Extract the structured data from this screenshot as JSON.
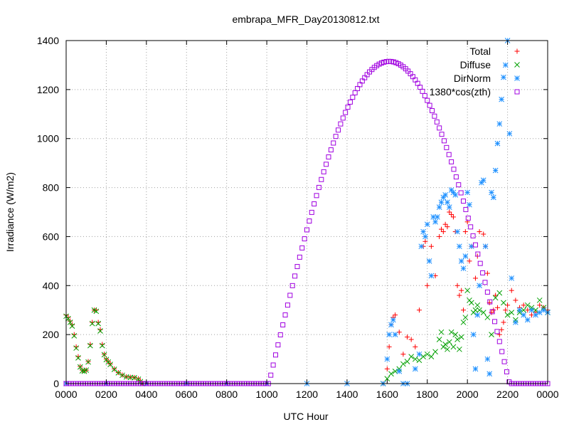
{
  "chart_data": {
    "type": "scatter",
    "title": "embrapa_MFR_Day20130812.txt",
    "xlabel": "UTC Hour",
    "ylabel": "Irradiance (W/m2)",
    "xlim": [
      0,
      24
    ],
    "ylim": [
      0,
      1400
    ],
    "grid": true,
    "legend_position": "top-right",
    "x_tick_labels": [
      "0000",
      "0200",
      "0400",
      "0600",
      "0800",
      "1000",
      "1200",
      "1400",
      "1600",
      "1800",
      "2000",
      "2200",
      "0000"
    ],
    "x_tick_values": [
      0,
      2,
      4,
      6,
      8,
      10,
      12,
      14,
      16,
      18,
      20,
      22,
      24
    ],
    "y_ticks": [
      0,
      200,
      400,
      600,
      800,
      1000,
      1200,
      1400
    ],
    "series": [
      {
        "name": "Total",
        "color": "#ff0000",
        "marker": "+",
        "points": [
          [
            0,
            280
          ],
          [
            0.1,
            270
          ],
          [
            0.2,
            255
          ],
          [
            0.3,
            240
          ],
          [
            0.4,
            200
          ],
          [
            0.5,
            150
          ],
          [
            0.6,
            110
          ],
          [
            0.7,
            70
          ],
          [
            0.8,
            55
          ],
          [
            0.9,
            52
          ],
          [
            1.0,
            55
          ],
          [
            1.1,
            90
          ],
          [
            1.2,
            160
          ],
          [
            1.3,
            250
          ],
          [
            1.4,
            300
          ],
          [
            1.5,
            300
          ],
          [
            1.6,
            250
          ],
          [
            1.7,
            220
          ],
          [
            1.8,
            160
          ],
          [
            1.9,
            120
          ],
          [
            2.0,
            100
          ],
          [
            2.1,
            90
          ],
          [
            2.2,
            80
          ],
          [
            2.4,
            60
          ],
          [
            2.6,
            45
          ],
          [
            2.8,
            35
          ],
          [
            3.0,
            28
          ],
          [
            3.2,
            26
          ],
          [
            3.4,
            25
          ],
          [
            3.6,
            20
          ],
          [
            3.7,
            10
          ],
          [
            3.8,
            0
          ],
          [
            15.8,
            0
          ],
          [
            16.0,
            60
          ],
          [
            16.1,
            150
          ],
          [
            16.2,
            240
          ],
          [
            16.3,
            270
          ],
          [
            16.4,
            280
          ],
          [
            16.6,
            210
          ],
          [
            16.8,
            120
          ],
          [
            17.0,
            190
          ],
          [
            17.2,
            180
          ],
          [
            17.4,
            150
          ],
          [
            17.6,
            300
          ],
          [
            17.8,
            560
          ],
          [
            17.9,
            580
          ],
          [
            18.0,
            400
          ],
          [
            18.2,
            560
          ],
          [
            18.4,
            440
          ],
          [
            18.6,
            600
          ],
          [
            18.7,
            630
          ],
          [
            18.8,
            620
          ],
          [
            18.9,
            650
          ],
          [
            19.0,
            640
          ],
          [
            19.1,
            700
          ],
          [
            19.2,
            690
          ],
          [
            19.3,
            680
          ],
          [
            19.4,
            620
          ],
          [
            19.5,
            400
          ],
          [
            19.6,
            360
          ],
          [
            19.7,
            380
          ],
          [
            19.8,
            300
          ],
          [
            19.9,
            620
          ],
          [
            20.0,
            660
          ],
          [
            20.1,
            500
          ],
          [
            20.2,
            560
          ],
          [
            20.4,
            430
          ],
          [
            20.5,
            520
          ],
          [
            20.6,
            620
          ],
          [
            20.8,
            610
          ],
          [
            20.9,
            560
          ],
          [
            21.0,
            450
          ],
          [
            21.1,
            330
          ],
          [
            21.2,
            290
          ],
          [
            21.3,
            300
          ],
          [
            21.4,
            360
          ],
          [
            21.5,
            310
          ],
          [
            21.6,
            200
          ],
          [
            21.7,
            220
          ],
          [
            21.8,
            250
          ],
          [
            21.9,
            300
          ],
          [
            22.0,
            320
          ],
          [
            22.2,
            380
          ],
          [
            22.4,
            340
          ],
          [
            22.6,
            310
          ],
          [
            22.8,
            320
          ],
          [
            23.0,
            300
          ],
          [
            23.2,
            280
          ],
          [
            23.4,
            290
          ],
          [
            23.6,
            320
          ],
          [
            23.8,
            310
          ],
          [
            24.0,
            300
          ]
        ]
      },
      {
        "name": "Diffuse",
        "color": "#00a000",
        "marker": "x",
        "points": [
          [
            0,
            275
          ],
          [
            0.1,
            265
          ],
          [
            0.2,
            250
          ],
          [
            0.3,
            235
          ],
          [
            0.4,
            195
          ],
          [
            0.5,
            145
          ],
          [
            0.6,
            105
          ],
          [
            0.7,
            68
          ],
          [
            0.8,
            52
          ],
          [
            0.9,
            50
          ],
          [
            1.0,
            55
          ],
          [
            1.1,
            88
          ],
          [
            1.2,
            155
          ],
          [
            1.3,
            245
          ],
          [
            1.4,
            300
          ],
          [
            1.5,
            295
          ],
          [
            1.6,
            245
          ],
          [
            1.7,
            215
          ],
          [
            1.8,
            155
          ],
          [
            1.9,
            118
          ],
          [
            2.0,
            98
          ],
          [
            2.1,
            88
          ],
          [
            2.2,
            78
          ],
          [
            2.4,
            58
          ],
          [
            2.6,
            44
          ],
          [
            2.8,
            34
          ],
          [
            3.0,
            27
          ],
          [
            3.2,
            25
          ],
          [
            3.4,
            24
          ],
          [
            3.6,
            18
          ],
          [
            3.7,
            8
          ],
          [
            3.8,
            0
          ],
          [
            15.8,
            0
          ],
          [
            16.0,
            20
          ],
          [
            16.2,
            40
          ],
          [
            16.4,
            50
          ],
          [
            16.6,
            60
          ],
          [
            16.8,
            80
          ],
          [
            17.0,
            90
          ],
          [
            17.2,
            110
          ],
          [
            17.4,
            100
          ],
          [
            17.6,
            95
          ],
          [
            17.8,
            110
          ],
          [
            18.0,
            120
          ],
          [
            18.2,
            110
          ],
          [
            18.4,
            130
          ],
          [
            18.6,
            180
          ],
          [
            18.7,
            210
          ],
          [
            18.8,
            150
          ],
          [
            18.9,
            160
          ],
          [
            19.0,
            140
          ],
          [
            19.1,
            170
          ],
          [
            19.2,
            210
          ],
          [
            19.3,
            150
          ],
          [
            19.4,
            200
          ],
          [
            19.5,
            180
          ],
          [
            19.6,
            140
          ],
          [
            19.7,
            190
          ],
          [
            19.8,
            250
          ],
          [
            19.9,
            270
          ],
          [
            20.0,
            380
          ],
          [
            20.1,
            340
          ],
          [
            20.2,
            330
          ],
          [
            20.3,
            290
          ],
          [
            20.4,
            300
          ],
          [
            20.5,
            320
          ],
          [
            20.6,
            300
          ],
          [
            20.8,
            290
          ],
          [
            21.0,
            270
          ],
          [
            21.2,
            200
          ],
          [
            21.4,
            350
          ],
          [
            21.6,
            370
          ],
          [
            21.8,
            330
          ],
          [
            22.0,
            280
          ],
          [
            22.2,
            290
          ],
          [
            22.4,
            260
          ],
          [
            22.6,
            290
          ],
          [
            22.8,
            300
          ],
          [
            23.0,
            320
          ],
          [
            23.2,
            310
          ],
          [
            23.4,
            300
          ],
          [
            23.6,
            340
          ],
          [
            23.8,
            310
          ],
          [
            24.0,
            290
          ]
        ]
      },
      {
        "name": "DirNorm",
        "color": "#1e90ff",
        "marker": "*",
        "points": [
          [
            0,
            0
          ],
          [
            2,
            0
          ],
          [
            4,
            0
          ],
          [
            6,
            0
          ],
          [
            8,
            0
          ],
          [
            10,
            0
          ],
          [
            12,
            0
          ],
          [
            14,
            0
          ],
          [
            15.8,
            0
          ],
          [
            16.0,
            100
          ],
          [
            16.1,
            200
          ],
          [
            16.2,
            240
          ],
          [
            16.3,
            260
          ],
          [
            16.4,
            200
          ],
          [
            16.6,
            50
          ],
          [
            16.8,
            0
          ],
          [
            17.0,
            0
          ],
          [
            17.4,
            60
          ],
          [
            17.6,
            120
          ],
          [
            17.7,
            560
          ],
          [
            17.8,
            620
          ],
          [
            17.9,
            600
          ],
          [
            18.0,
            650
          ],
          [
            18.1,
            500
          ],
          [
            18.2,
            440
          ],
          [
            18.3,
            680
          ],
          [
            18.4,
            660
          ],
          [
            18.5,
            680
          ],
          [
            18.6,
            720
          ],
          [
            18.7,
            740
          ],
          [
            18.8,
            760
          ],
          [
            18.9,
            770
          ],
          [
            19.0,
            740
          ],
          [
            19.1,
            720
          ],
          [
            19.2,
            790
          ],
          [
            19.3,
            780
          ],
          [
            19.4,
            770
          ],
          [
            19.5,
            620
          ],
          [
            19.6,
            560
          ],
          [
            19.7,
            500
          ],
          [
            19.8,
            470
          ],
          [
            19.9,
            520
          ],
          [
            20.0,
            780
          ],
          [
            20.1,
            730
          ],
          [
            20.2,
            560
          ],
          [
            20.3,
            200
          ],
          [
            20.4,
            60
          ],
          [
            20.5,
            280
          ],
          [
            20.6,
            400
          ],
          [
            20.7,
            820
          ],
          [
            20.8,
            830
          ],
          [
            20.9,
            560
          ],
          [
            21.0,
            100
          ],
          [
            21.1,
            40
          ],
          [
            21.2,
            780
          ],
          [
            21.3,
            760
          ],
          [
            21.4,
            870
          ],
          [
            21.5,
            980
          ],
          [
            21.6,
            1060
          ],
          [
            21.7,
            1160
          ],
          [
            21.8,
            1250
          ],
          [
            21.9,
            1300
          ],
          [
            22.0,
            1400
          ],
          [
            22.1,
            1020
          ],
          [
            22.2,
            430
          ],
          [
            22.4,
            250
          ],
          [
            22.6,
            300
          ],
          [
            22.8,
            280
          ],
          [
            23.0,
            260
          ],
          [
            23.2,
            300
          ],
          [
            23.4,
            280
          ],
          [
            23.6,
            290
          ],
          [
            23.8,
            300
          ],
          [
            24.0,
            290
          ]
        ]
      },
      {
        "name": "1380*cos(zth)",
        "color": "#a000e0",
        "marker": "square",
        "formula": {
          "start": 10.1,
          "end": 22.1,
          "peak_hour": 16.1,
          "peak": 1315
        }
      }
    ]
  }
}
